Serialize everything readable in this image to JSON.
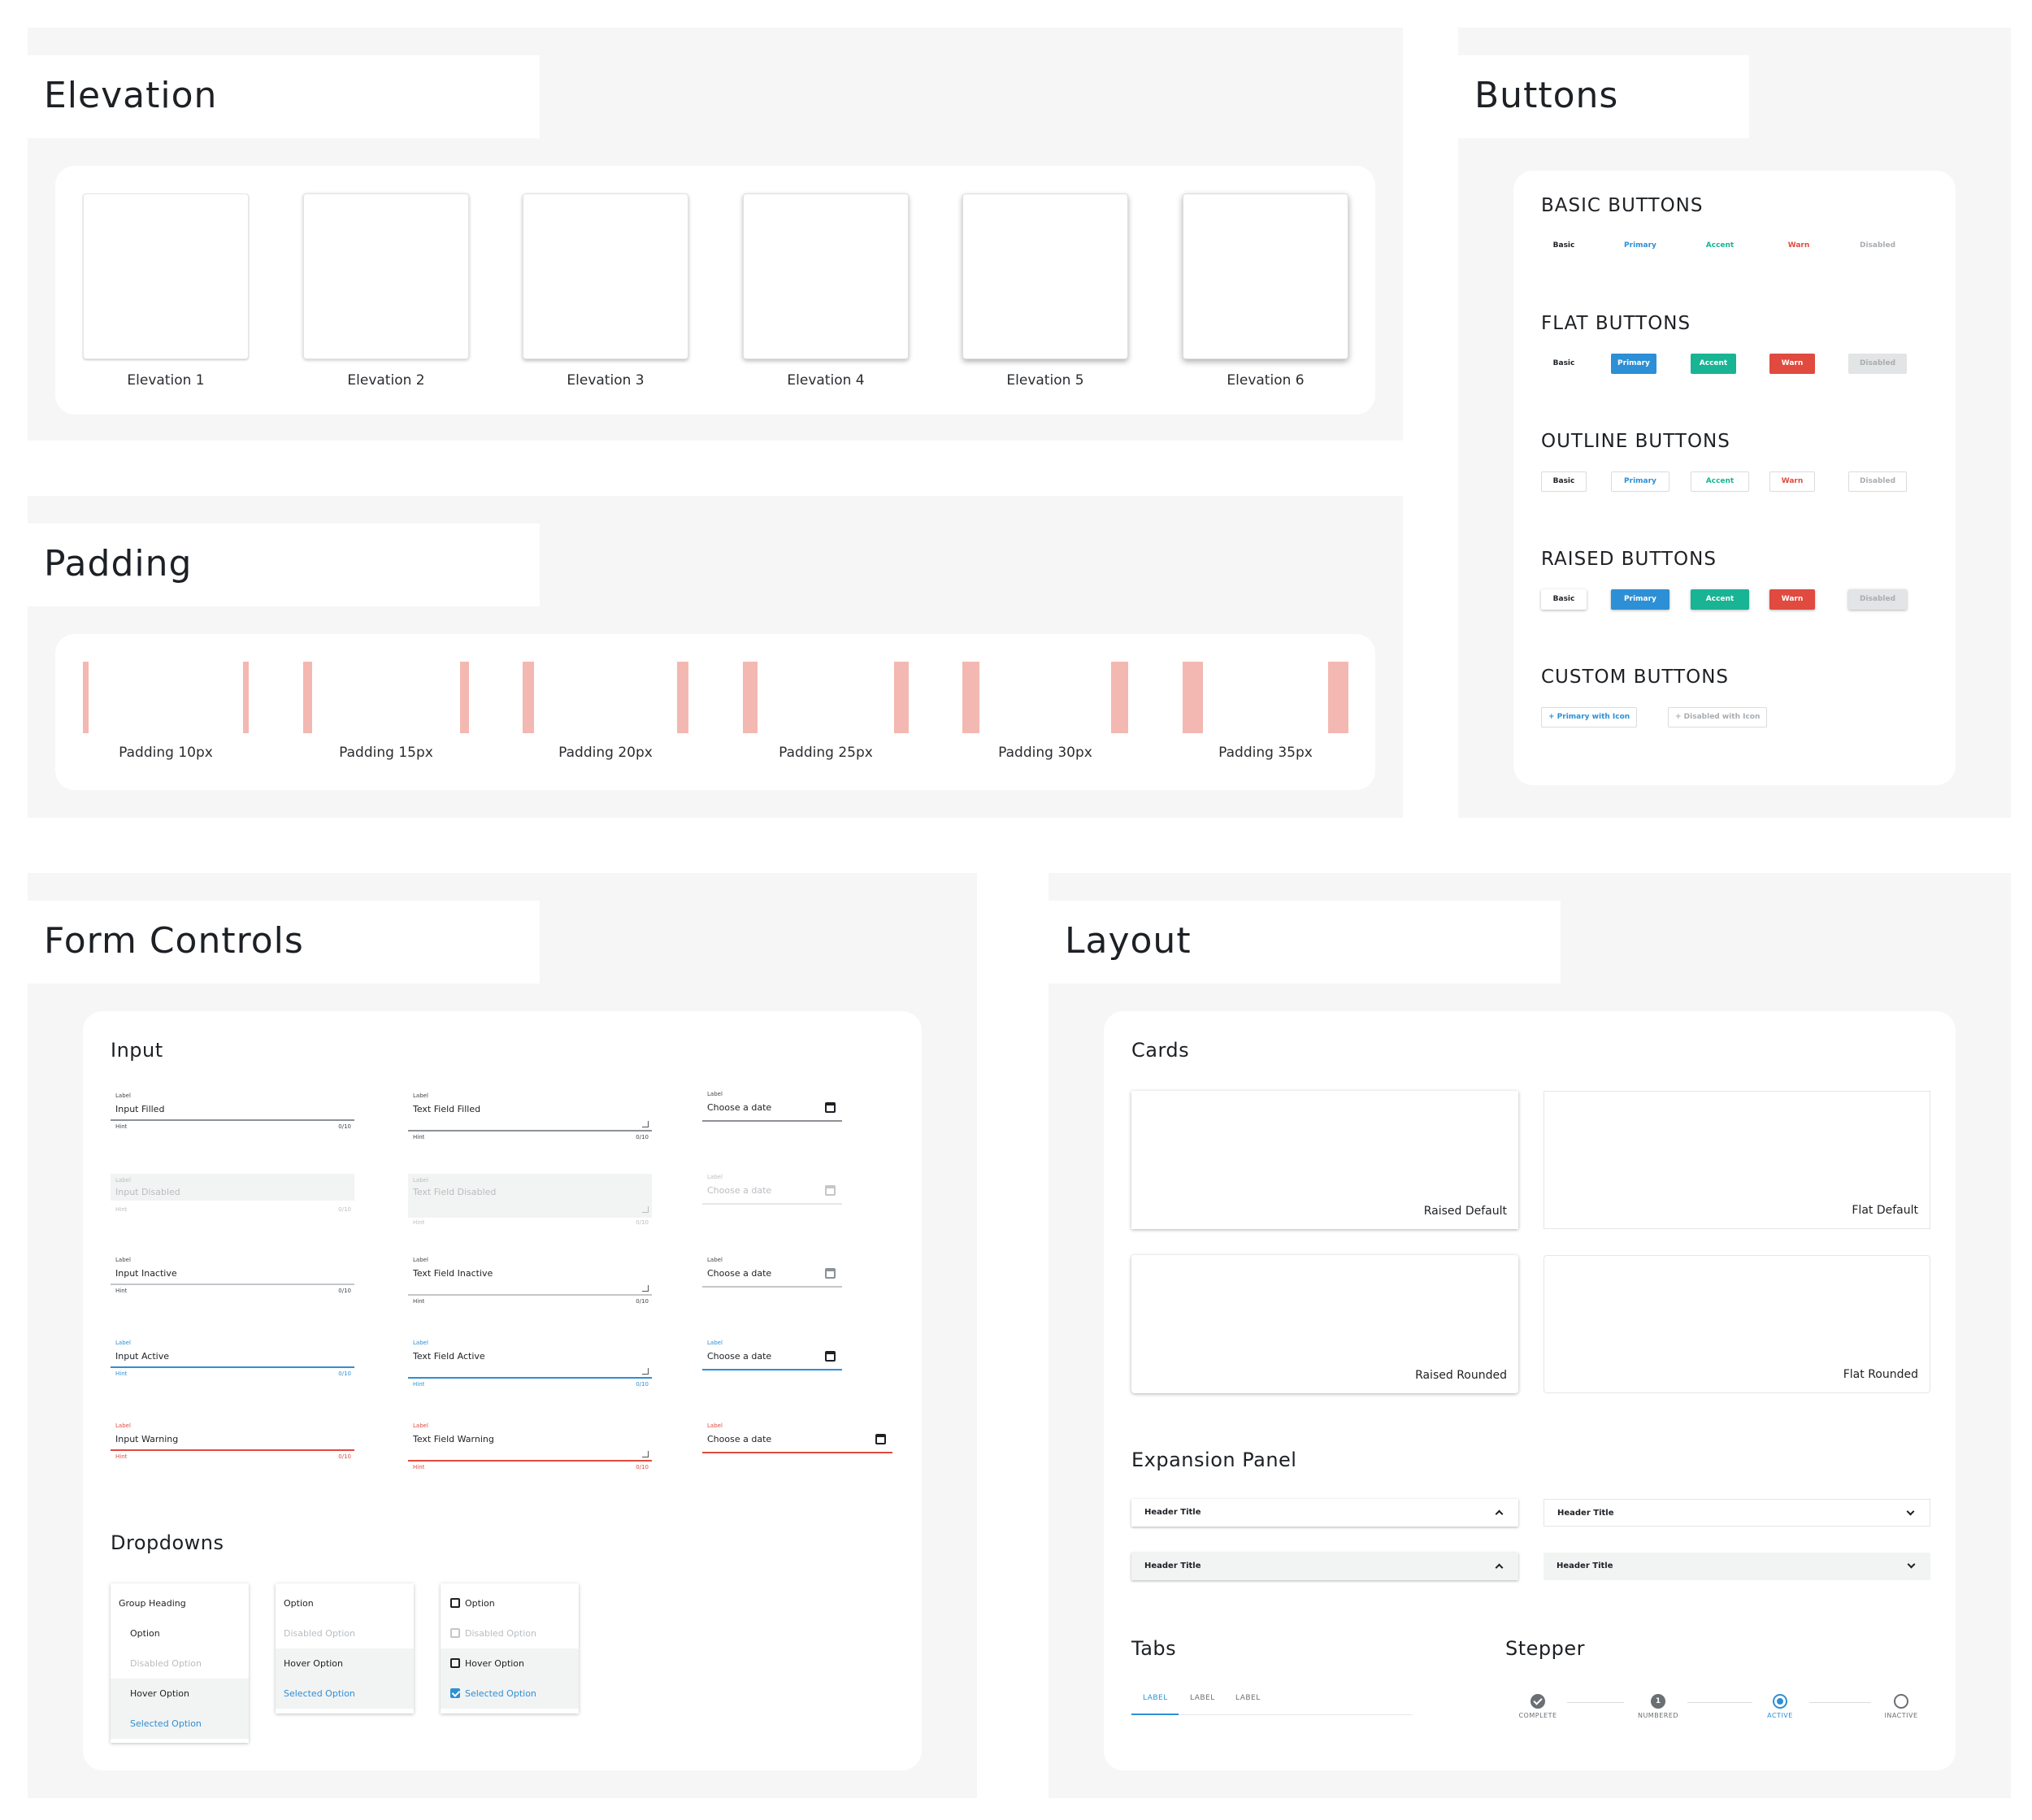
{
  "elevation": {
    "title": "Elevation",
    "items": [
      "Elevation 1",
      "Elevation 2",
      "Elevation 3",
      "Elevation 4",
      "Elevation 5",
      "Elevation 6"
    ]
  },
  "padding": {
    "title": "Padding",
    "items": [
      "Padding 10px",
      "Padding 15px",
      "Padding 20px",
      "Padding 25px",
      "Padding 30px",
      "Padding 35px"
    ]
  },
  "buttons": {
    "title": "Buttons",
    "basic_heading": "BASIC BUTTONS",
    "flat_heading": "FLAT BUTTONS",
    "outline_heading": "OUTLINE BUTTONS",
    "raised_heading": "RAISED BUTTONS",
    "custom_heading": "CUSTOM BUTTONS",
    "labels": {
      "basic": "Basic",
      "primary": "Primary",
      "accent": "Accent",
      "warn": "Warn",
      "disabled": "Disabled"
    },
    "custom": {
      "primary_icon": "+ Primary with Icon",
      "disabled_icon": "+ Disabled with Icon"
    },
    "colors": {
      "primary": "#2d8fd5",
      "accent": "#18b494",
      "warn": "#e04a3f",
      "disabled": "#e2e4e5"
    }
  },
  "form": {
    "title": "Form Controls",
    "input_heading": "Input",
    "label": "Label",
    "hint": "Hint",
    "count": "0/10",
    "inputs": {
      "filled": "Input Filled",
      "disabled": "Input Disabled",
      "inactive": "Input Inactive",
      "active": "Input Active",
      "warning": "Input Warning"
    },
    "textfields": {
      "filled": "Text Field Filled",
      "disabled": "Text Field Disabled",
      "inactive": "Text Field Inactive",
      "active": "Text Field Active",
      "warning": "Text Field Warning"
    },
    "date_placeholder": "Choose a date",
    "dropdowns_heading": "Dropdowns",
    "dropdown1": [
      "Group Heading",
      "Option",
      "Disabled Option",
      "Hover Option",
      "Selected Option"
    ],
    "dropdown2": [
      "Option",
      "Disabled Option",
      "Hover Option",
      "Selected Option"
    ],
    "dropdown3": [
      "Option",
      "Disabled Option",
      "Hover Option",
      "Selected Option"
    ]
  },
  "layout": {
    "title": "Layout",
    "cards_heading": "Cards",
    "cards": [
      "Raised Default",
      "Flat Default",
      "Raised Rounded",
      "Flat Rounded"
    ],
    "expansion_heading": "Expansion Panel",
    "header_title": "Header Title",
    "tabs_heading": "Tabs",
    "tabs": [
      "LABEL",
      "LABEL",
      "LABEL"
    ],
    "stepper_heading": "Stepper",
    "steps": [
      "COMPLETE",
      "NUMBERED",
      "ACTIVE",
      "INACTIVE"
    ],
    "step_number": "1"
  }
}
